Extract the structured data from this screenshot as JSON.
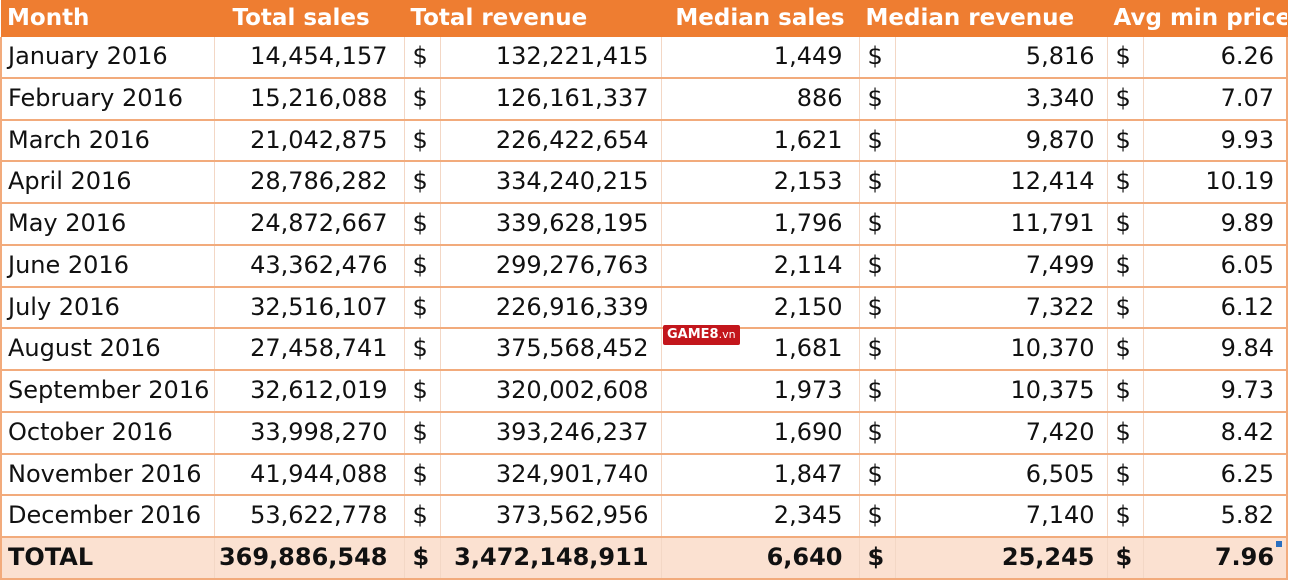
{
  "table": {
    "headers": {
      "month": "Month",
      "total_sales": "Total sales",
      "total_revenue": "Total revenue",
      "median_sales": "Median sales",
      "median_revenue": "Median revenue",
      "avg_min_price": "Avg min price"
    },
    "currency_symbol": "$",
    "rows": [
      {
        "month": "January 2016",
        "total_sales": "14,454,157",
        "total_revenue": "132,221,415",
        "median_sales": "1,449",
        "median_revenue": "5,816",
        "avg_min_price": "6.26"
      },
      {
        "month": "February 2016",
        "total_sales": "15,216,088",
        "total_revenue": "126,161,337",
        "median_sales": "886",
        "median_revenue": "3,340",
        "avg_min_price": "7.07"
      },
      {
        "month": "March 2016",
        "total_sales": "21,042,875",
        "total_revenue": "226,422,654",
        "median_sales": "1,621",
        "median_revenue": "9,870",
        "avg_min_price": "9.93"
      },
      {
        "month": "April 2016",
        "total_sales": "28,786,282",
        "total_revenue": "334,240,215",
        "median_sales": "2,153",
        "median_revenue": "12,414",
        "avg_min_price": "10.19"
      },
      {
        "month": "May 2016",
        "total_sales": "24,872,667",
        "total_revenue": "339,628,195",
        "median_sales": "1,796",
        "median_revenue": "11,791",
        "avg_min_price": "9.89"
      },
      {
        "month": "June 2016",
        "total_sales": "43,362,476",
        "total_revenue": "299,276,763",
        "median_sales": "2,114",
        "median_revenue": "7,499",
        "avg_min_price": "6.05"
      },
      {
        "month": "July 2016",
        "total_sales": "32,516,107",
        "total_revenue": "226,916,339",
        "median_sales": "2,150",
        "median_revenue": "7,322",
        "avg_min_price": "6.12"
      },
      {
        "month": "August 2016",
        "total_sales": "27,458,741",
        "total_revenue": "375,568,452",
        "median_sales": "1,681",
        "median_revenue": "10,370",
        "avg_min_price": "9.84"
      },
      {
        "month": "September 2016",
        "total_sales": "32,612,019",
        "total_revenue": "320,002,608",
        "median_sales": "1,973",
        "median_revenue": "10,375",
        "avg_min_price": "9.73"
      },
      {
        "month": "October 2016",
        "total_sales": "33,998,270",
        "total_revenue": "393,246,237",
        "median_sales": "1,690",
        "median_revenue": "7,420",
        "avg_min_price": "8.42"
      },
      {
        "month": "November 2016",
        "total_sales": "41,944,088",
        "total_revenue": "324,901,740",
        "median_sales": "1,847",
        "median_revenue": "6,505",
        "avg_min_price": "6.25"
      },
      {
        "month": "December 2016",
        "total_sales": "53,622,778",
        "total_revenue": "373,562,956",
        "median_sales": "2,345",
        "median_revenue": "7,140",
        "avg_min_price": "5.82"
      }
    ],
    "total": {
      "month": "TOTAL",
      "total_sales": "369,886,548",
      "total_revenue": "3,472,148,911",
      "median_sales": "6,640",
      "median_revenue": "25,245",
      "avg_min_price": "7.96"
    }
  },
  "watermark": {
    "brand": "GAME8",
    "domain": ".vn"
  },
  "colors": {
    "header_bg": "#ee7d31",
    "header_text": "#ffffff",
    "total_row_bg": "#fbe1d1",
    "grid_line": "#f2ab7c"
  }
}
